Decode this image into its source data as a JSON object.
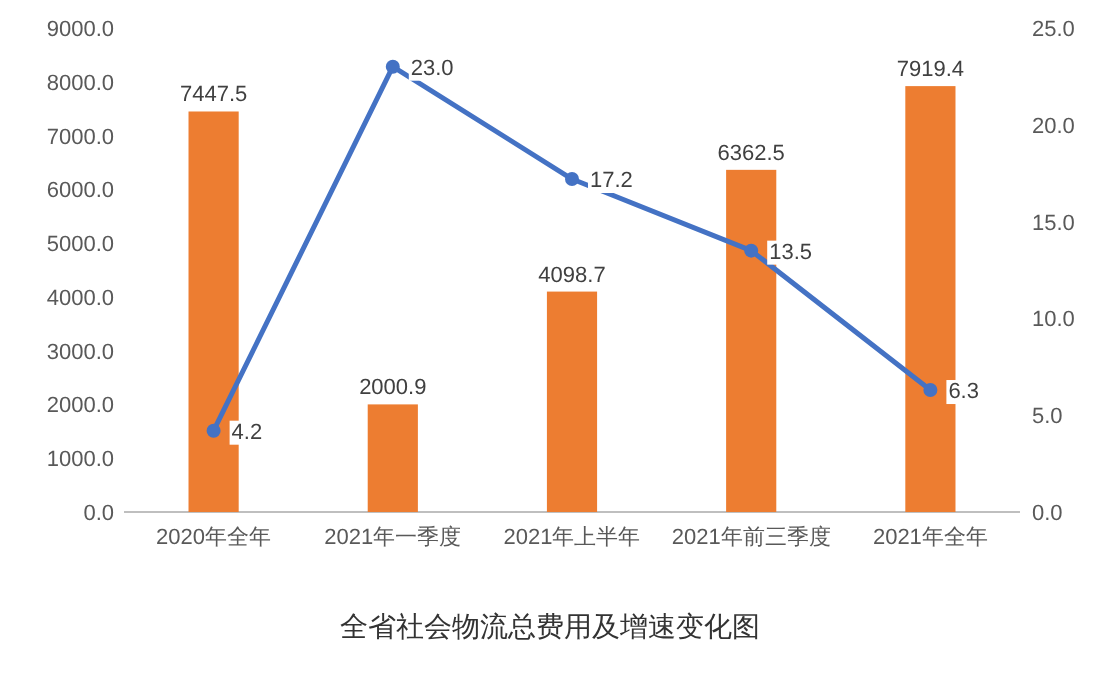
{
  "chart_data": {
    "type": "bar",
    "title": "全省社会物流总费用及增速变化图",
    "categories": [
      "2020年全年",
      "2021年一季度",
      "2021年上半年",
      "2021年前三季度",
      "2021年全年"
    ],
    "series": [
      {
        "color": "#ed7d31",
        "values": [
          7447.5,
          2000.9,
          4098.7,
          6362.5,
          7919.4
        ],
        "value_labels": [
          "7447.5",
          "2000.9",
          "4098.7",
          "6362.5",
          "7919.4"
        ]
      },
      {
        "type": "line",
        "axis": "y2",
        "color": "#4472c4",
        "values": [
          4.2,
          23.0,
          17.2,
          13.5,
          6.3
        ],
        "value_labels": [
          "4.2",
          "23.0",
          "17.2",
          "13.5",
          "6.3"
        ]
      }
    ],
    "marker": "circle",
    "ylim": [
      0,
      9000
    ],
    "yticks": [
      {
        "value": 0,
        "label": "0.0"
      },
      {
        "value": 1000,
        "label": "1000.0"
      },
      {
        "value": 2000,
        "label": "2000.0"
      },
      {
        "value": 3000,
        "label": "3000.0"
      },
      {
        "value": 4000,
        "label": "4000.0"
      },
      {
        "value": 5000,
        "label": "5000.0"
      },
      {
        "value": 6000,
        "label": "6000.0"
      },
      {
        "value": 7000,
        "label": "7000.0"
      },
      {
        "value": 8000,
        "label": "8000.0"
      },
      {
        "value": 9000,
        "label": "9000.0"
      }
    ],
    "y2lim": [
      0,
      25
    ],
    "y2ticks": [
      {
        "value": 0,
        "label": "0.0"
      },
      {
        "value": 5,
        "label": "5.0"
      },
      {
        "value": 10,
        "label": "10.0"
      },
      {
        "value": 15,
        "label": "15.0"
      },
      {
        "value": 20,
        "label": "20.0"
      },
      {
        "value": 25,
        "label": "25.0"
      }
    ]
  }
}
